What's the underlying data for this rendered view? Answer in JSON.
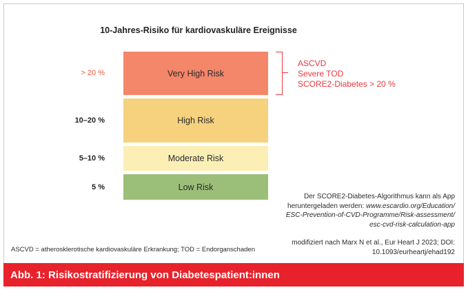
{
  "title": "10-Jahres-Risiko für kardiovaskuläre Ereignisse",
  "colors": {
    "very_high": "#f4866a",
    "high": "#f6d27e",
    "moderate": "#fbefb5",
    "low": "#9bbf78",
    "accent_red": "#e8222b"
  },
  "levels": [
    {
      "range": "> 20 %",
      "label": "Very High Risk"
    },
    {
      "range": "10–20 %",
      "label": "High Risk"
    },
    {
      "range": "5–10 %",
      "label": "Moderate Risk"
    },
    {
      "range": "5 %",
      "label": "Low Risk"
    }
  ],
  "criteria": [
    "ASCVD",
    "Severe TOD",
    "SCORE2-Diabetes > 20 %"
  ],
  "app_note": {
    "line1": "Der SCORE2-Diabetes-Algorithmus kann als App",
    "line2_prefix": "heruntergeladen werden: ",
    "line2_link": "www.escardio.org/Education/",
    "line3": "ESC-Prevention-of-CVD-Programme/Risk-assessment/",
    "line4": "esc-cvd-risk-calculation-app"
  },
  "source": {
    "line1": "modifiziert nach Marx N et al., Eur Heart J 2023; DOI:",
    "line2": "10.1093/eurheartj/ehad192"
  },
  "footnote": "ASCVD = atherosklerotische kardiovaskuläre Erkrankung; TOD = Endorganschaden",
  "caption": "Abb. 1: Risikostratifizierung von Diabetespatient:innen"
}
